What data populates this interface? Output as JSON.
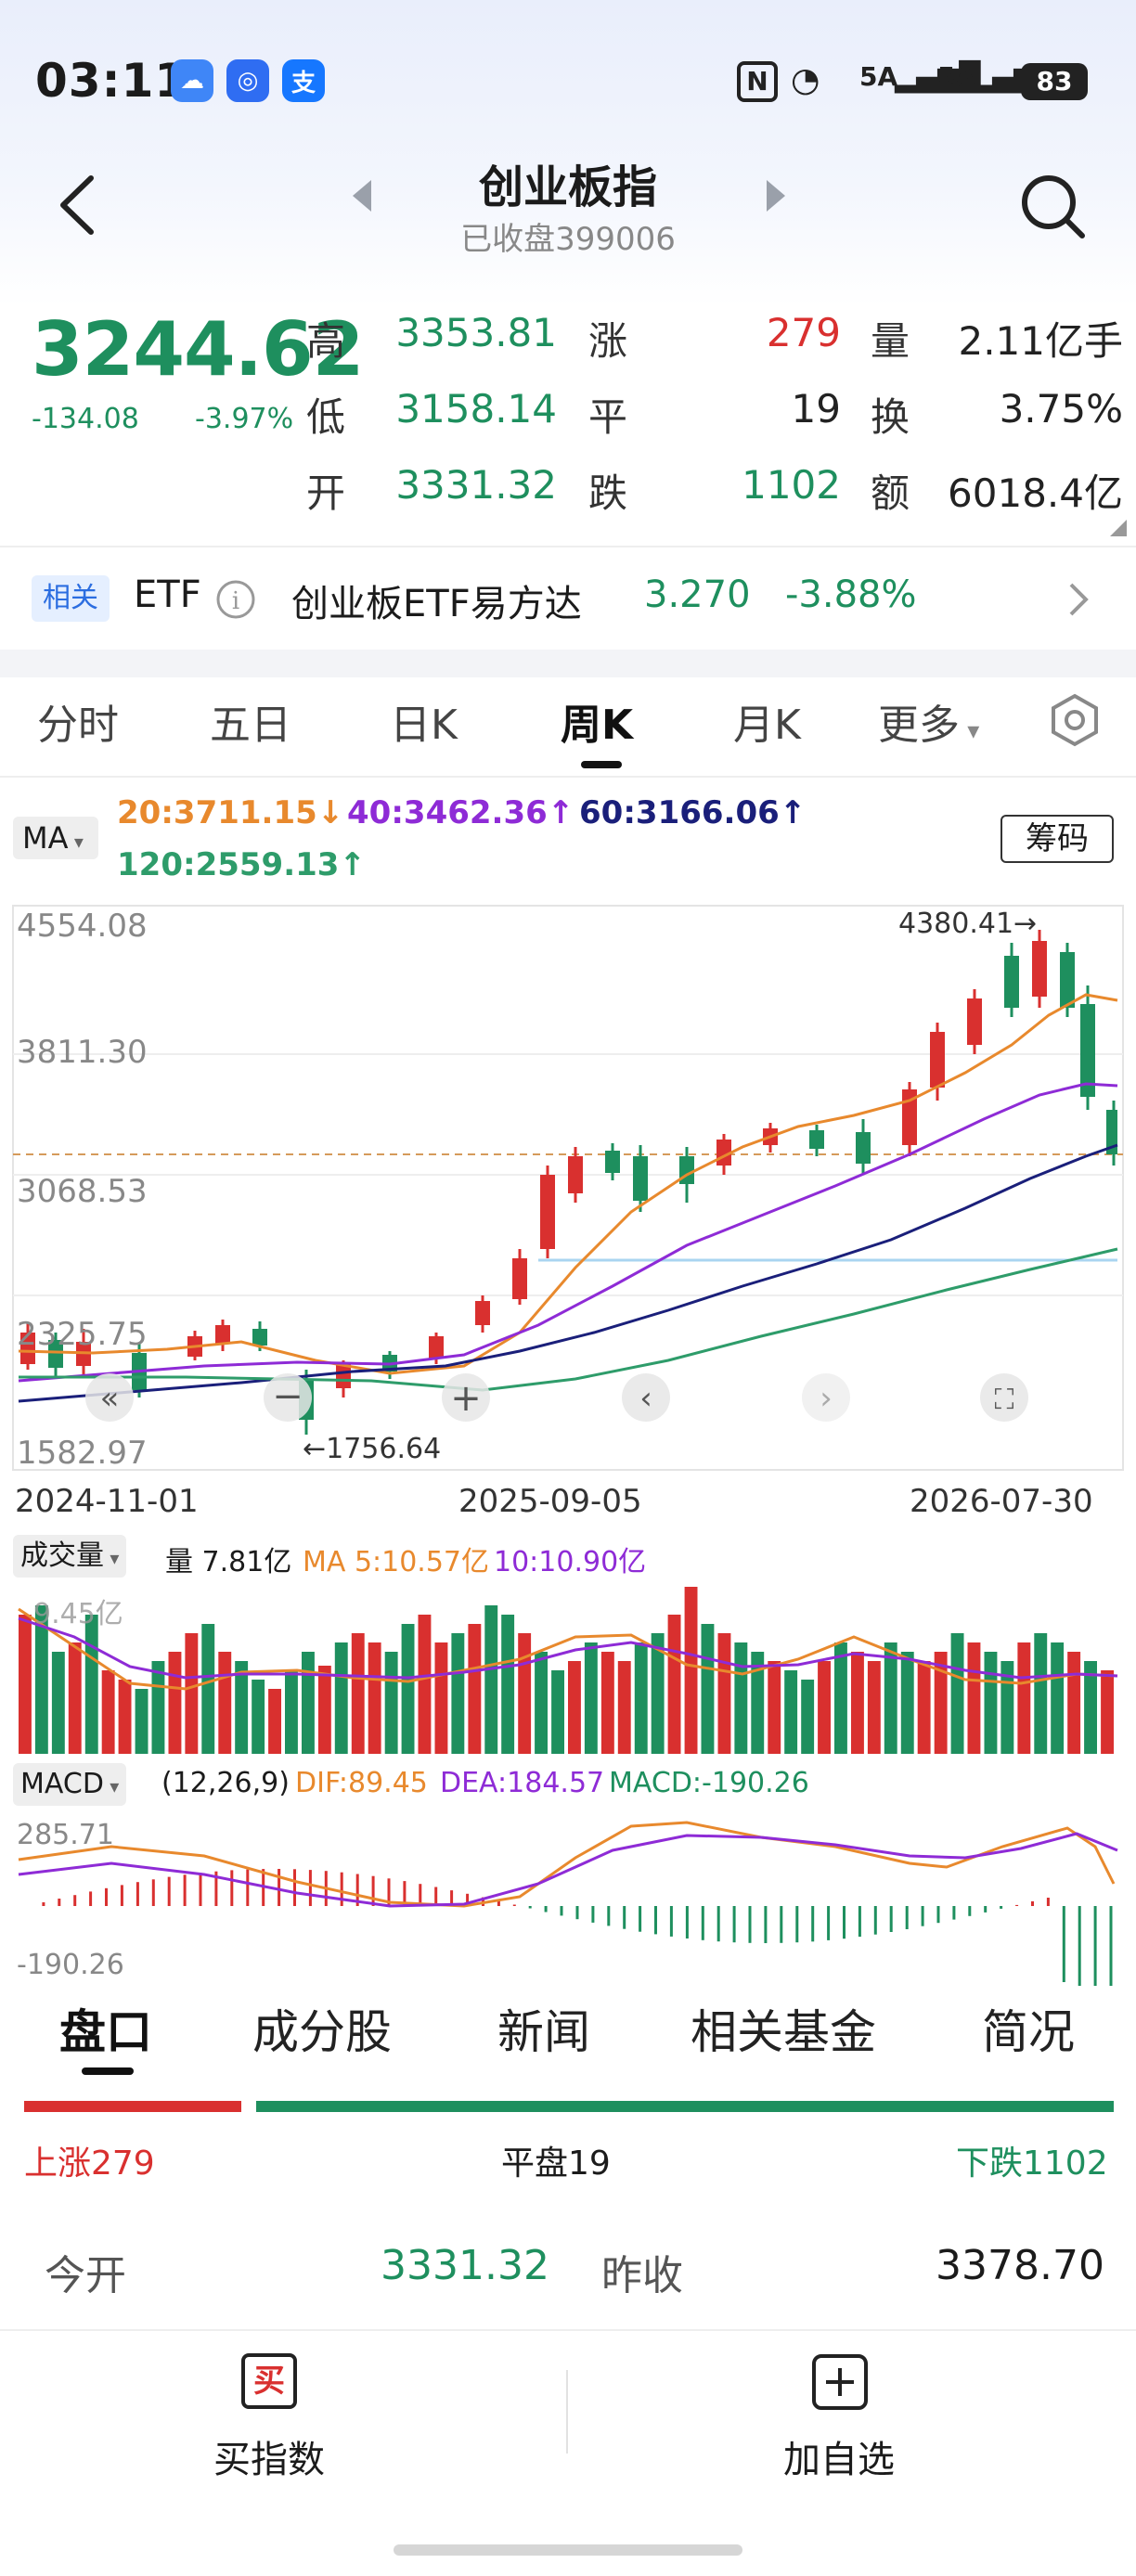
{
  "status_bar": {
    "time": "03:11",
    "signal_1": "5A",
    "signal_2": "5A",
    "battery": "83"
  },
  "header": {
    "title": "创业板指",
    "subtitle": "已收盘399006"
  },
  "quote": {
    "price": "3244.62",
    "change": "-134.08",
    "change_pct": "-3.97%",
    "high_label": "高",
    "high": "3353.81",
    "low_label": "低",
    "low": "3158.14",
    "open_label": "开",
    "open": "3331.32",
    "up_label": "涨",
    "up": "279",
    "flat_label": "平",
    "flat": "19",
    "down_label": "跌",
    "down": "1102",
    "vol_label": "量",
    "vol": "2.11亿手",
    "turnover_label": "换",
    "turnover": "3.75%",
    "amount_label": "额",
    "amount": "6018.4亿"
  },
  "etf": {
    "tag": "相关",
    "label": "ETF",
    "name": "创业板ETF易方达",
    "price": "3.270",
    "change": "-3.88%"
  },
  "tabs": [
    "分时",
    "五日",
    "日K",
    "周K",
    "月K",
    "更多"
  ],
  "active_tab": "周K",
  "ma": {
    "selector": "MA",
    "ma20": "20:3711.15↓",
    "ma40": "40:3462.36↑",
    "ma60": "60:3166.06↑",
    "ma120": "120:2559.13↑",
    "chip_button": "筹码"
  },
  "kline": {
    "y_top": "4554.08",
    "y_mid": "3811.30",
    "y_low": "3068.53",
    "y_lower": "2325.75",
    "y_bottom": "1582.97",
    "max_note": "4380.41→",
    "min_note": "←1756.64",
    "dates": [
      "2024-11-01",
      "2025-09-05",
      "2026-07-30"
    ]
  },
  "volume": {
    "selector": "成交量",
    "vol": "量 7.81亿",
    "ma5": "MA 5:10.57亿",
    "ma10": "10:10.90亿",
    "axis_top": "9.45亿"
  },
  "macd": {
    "selector": "MACD",
    "params": "(12,26,9)",
    "dif": "DIF:89.45",
    "dea": "DEA:184.57",
    "macd": "MACD:-190.26",
    "y_top": "285.71",
    "y_bottom": "-190.26"
  },
  "bottom_tabs": [
    "盘口",
    "成分股",
    "新闻",
    "相关基金",
    "简况"
  ],
  "breadth": {
    "up": "上涨279",
    "flat": "平盘19",
    "down": "下跌1102",
    "up_count": 279,
    "flat_count": 19,
    "down_count": 1102
  },
  "open_row": {
    "today_open_label": "今开",
    "today_open": "3331.32",
    "prev_close_label": "昨收",
    "prev_close": "3378.70"
  },
  "actions": {
    "buy_icon": "买",
    "buy_label": "买指数",
    "add_label": "加自选"
  },
  "colors": {
    "up": "#d9302f",
    "down": "#1e8f5e",
    "ma20": "#e8892d",
    "ma40": "#8e2bd6",
    "ma60": "#1a1f7a",
    "ma120": "#2e9c6a"
  }
}
